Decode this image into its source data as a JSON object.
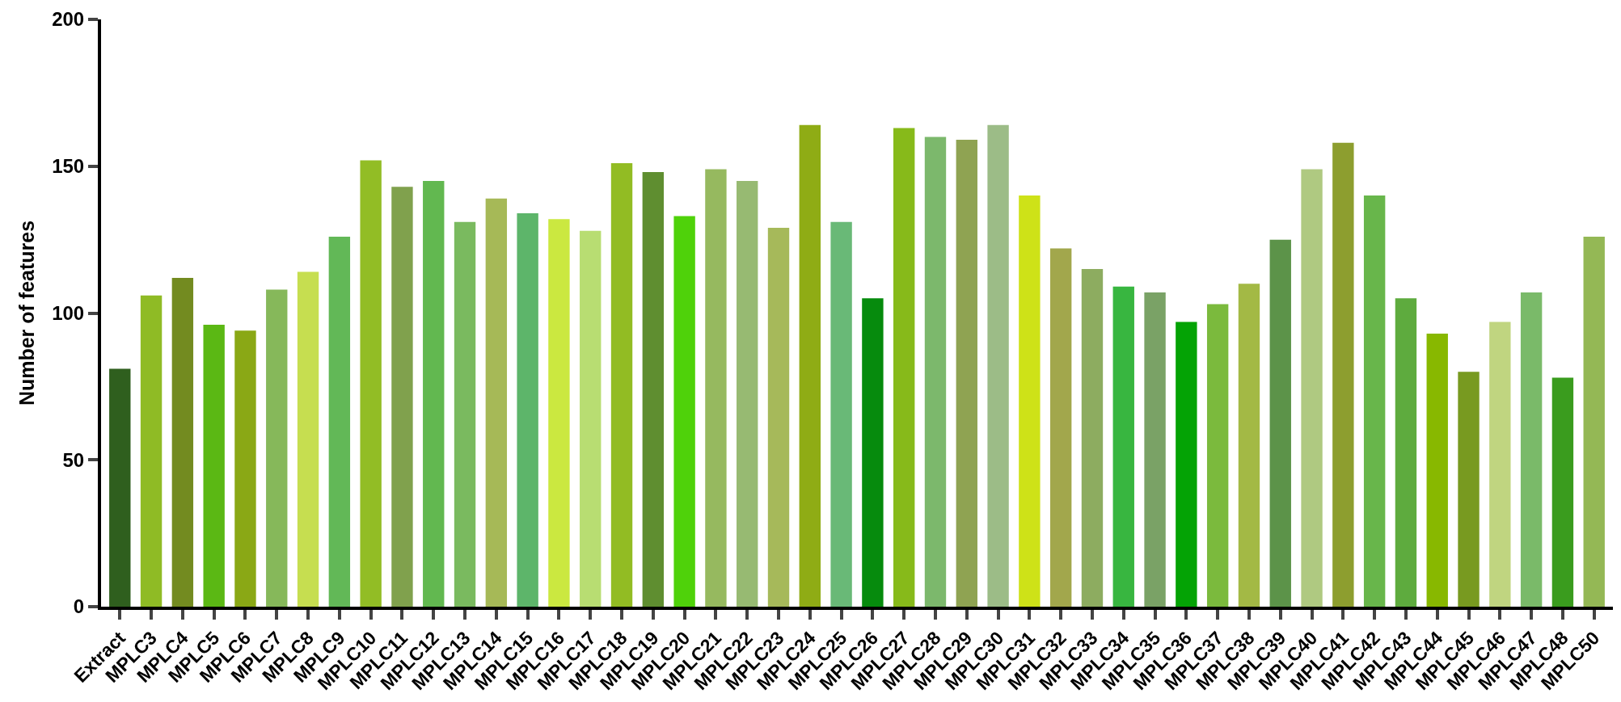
{
  "chart_data": {
    "type": "bar",
    "ylabel": "Number of features",
    "categories": [
      "Extract",
      "MPLC3",
      "MPLC4",
      "MPLC5",
      "MPLC6",
      "MPLC7",
      "MPLC8",
      "MPLC9",
      "MPLC10",
      "MPLC11",
      "MPLC12",
      "MPLC13",
      "MPLC14",
      "MPLC15",
      "MPLC16",
      "MPLC17",
      "MPLC18",
      "MPLC19",
      "MPLC20",
      "MPLC21",
      "MPLC22",
      "MPLC23",
      "MPLC24",
      "MPLC25",
      "MPLC26",
      "MPLC27",
      "MPLC28",
      "MPLC29",
      "MPLC30",
      "MPLC31",
      "MPLC32",
      "MPLC33",
      "MPLC34",
      "MPLC35",
      "MPLC36",
      "MPLC37",
      "MPLC38",
      "MPLC39",
      "MPLC40",
      "MPLC41",
      "MPLC42",
      "MPLC43",
      "MPLC44",
      "MPLC45",
      "MPLC46",
      "MPLC47",
      "MPLC48",
      "MPLC50"
    ],
    "values": [
      81,
      106,
      112,
      96,
      94,
      108,
      114,
      126,
      152,
      143,
      145,
      131,
      139,
      134,
      132,
      128,
      151,
      148,
      133,
      149,
      145,
      129,
      164,
      131,
      105,
      163,
      160,
      159,
      164,
      140,
      122,
      115,
      109,
      107,
      97,
      103,
      110,
      125,
      149,
      158,
      140,
      105,
      93,
      80,
      97,
      107,
      78,
      126
    ],
    "colors": [
      "#2f5f1e",
      "#8fbb25",
      "#738b20",
      "#5bb814",
      "#8aa815",
      "#86b85a",
      "#c6de50",
      "#62b857",
      "#92bd25",
      "#80a14d",
      "#62b850",
      "#7aba5f",
      "#a6b957",
      "#5db56a",
      "#cbe840",
      "#b8dd72",
      "#92bc23",
      "#5f8e30",
      "#4fd20a",
      "#96b95f",
      "#97ba72",
      "#a6b95a",
      "#8fac15",
      "#69b977",
      "#068b0d",
      "#87ba1a",
      "#7cb86c",
      "#8fa352",
      "#9cbc87",
      "#cee218",
      "#a2a74c",
      "#8dac60",
      "#38b640",
      "#7aa266",
      "#04a305",
      "#7bba3d",
      "#a3b945",
      "#5c9349",
      "#afc981",
      "#8d9e2f",
      "#68b64b",
      "#5eab3e",
      "#88b800",
      "#789a20",
      "#c0d580",
      "#7aba69",
      "#3a9c1e",
      "#94b855"
    ],
    "ylim": [
      0,
      200
    ],
    "yticks": [
      0,
      50,
      100,
      150,
      200
    ]
  }
}
